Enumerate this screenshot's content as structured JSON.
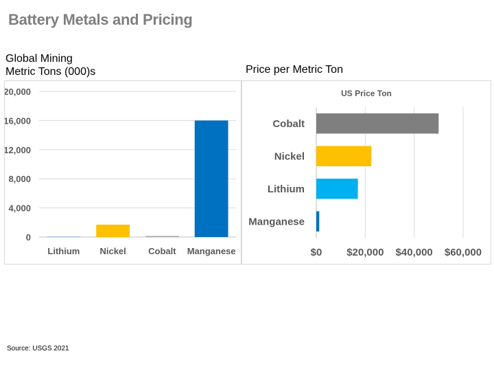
{
  "slide": {
    "title": "Battery Metals and Pricing",
    "source": "Source:  USGS 2021"
  },
  "left_chart": {
    "heading_line1": "Global Mining",
    "heading_line2": "Metric Tons (000)s"
  },
  "right_chart": {
    "heading": "Price per Metric Ton"
  },
  "chart_data": [
    {
      "type": "bar",
      "orientation": "vertical",
      "title": "",
      "categories": [
        "Lithium",
        "Nickel",
        "Cobalt",
        "Manganese"
      ],
      "values": [
        82,
        1700,
        140,
        16000
      ],
      "colors": [
        "#8fb8dc",
        "#ffc000",
        "#a5a5a5",
        "#0070c0"
      ],
      "ylim": [
        0,
        20000
      ],
      "yticks": [
        0,
        4000,
        8000,
        12000,
        16000,
        20000
      ],
      "ytick_labels": [
        "0",
        "4,000",
        "8,000",
        "12,000",
        "16,000",
        "20,000"
      ],
      "grid": true
    },
    {
      "type": "bar",
      "orientation": "horizontal",
      "title": "US Price Ton",
      "categories": [
        "Cobalt",
        "Nickel",
        "Lithium",
        "Manganese"
      ],
      "values": [
        50000,
        22500,
        17000,
        1200
      ],
      "colors": [
        "#7f7f7f",
        "#ffc000",
        "#00b0f0",
        "#0070c0"
      ],
      "xlim": [
        0,
        60000
      ],
      "xticks": [
        0,
        20000,
        40000,
        60000
      ],
      "xtick_labels": [
        "$0",
        "$20,000",
        "$40,000",
        "$60,000"
      ],
      "grid": true
    }
  ]
}
